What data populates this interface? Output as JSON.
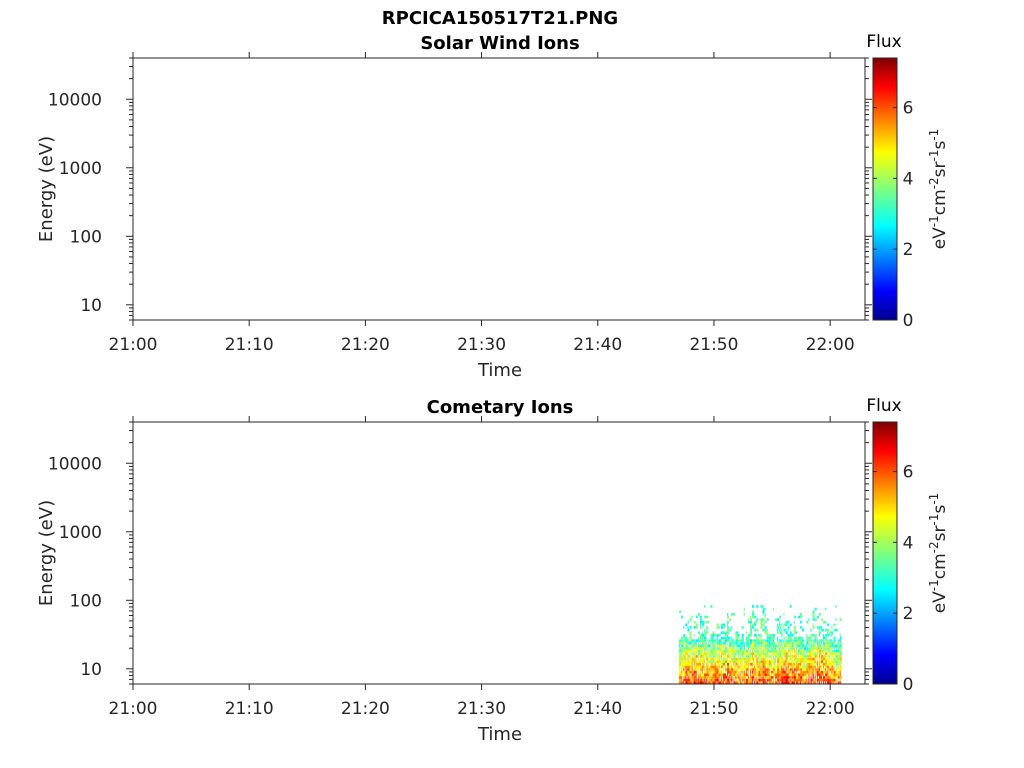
{
  "figure_title": "RPCICA150517T21.PNG",
  "chart_data": [
    {
      "type": "heatmap",
      "title": "Solar Wind Ions",
      "xlabel": "Time",
      "ylabel": "Energy (eV)",
      "y_scale": "log",
      "ylim": [
        6,
        40000
      ],
      "y_ticks": [
        10,
        100,
        1000,
        10000
      ],
      "y_tick_labels": [
        "10",
        "100",
        "1000",
        "10000"
      ],
      "x_ticks": [
        "21:00",
        "21:10",
        "21:20",
        "21:30",
        "21:40",
        "21:50",
        "22:00"
      ],
      "xlim": [
        "21:00",
        "22:03"
      ],
      "grid": false,
      "colorbar": {
        "title": "Flux",
        "label": "eV-1cm-2sr-1s-1",
        "colormap": "jet",
        "range": [
          0,
          7.4
        ],
        "ticks": [
          0,
          2,
          4,
          6
        ],
        "tick_labels": [
          "0",
          "2",
          "4",
          "6"
        ]
      },
      "cells": []
    },
    {
      "type": "heatmap",
      "title": "Cometary Ions",
      "xlabel": "Time",
      "ylabel": "Energy (eV)",
      "y_scale": "log",
      "ylim": [
        6,
        40000
      ],
      "y_ticks": [
        10,
        100,
        1000,
        10000
      ],
      "y_tick_labels": [
        "10",
        "100",
        "1000",
        "10000"
      ],
      "x_ticks": [
        "21:00",
        "21:10",
        "21:20",
        "21:30",
        "21:40",
        "21:50",
        "22:00"
      ],
      "xlim": [
        "21:00",
        "22:03"
      ],
      "grid": false,
      "colorbar": {
        "title": "Flux",
        "label": "eV-1cm-2sr-1s-1",
        "colormap": "jet",
        "range": [
          0,
          7.4
        ],
        "ticks": [
          0,
          2,
          4,
          6
        ],
        "tick_labels": [
          "0",
          "2",
          "4",
          "6"
        ]
      },
      "activity": {
        "time_start": "21:47",
        "time_end": "22:01",
        "energy_min": 6,
        "energy_max": 85,
        "peak_flux": 6.5
      }
    }
  ]
}
